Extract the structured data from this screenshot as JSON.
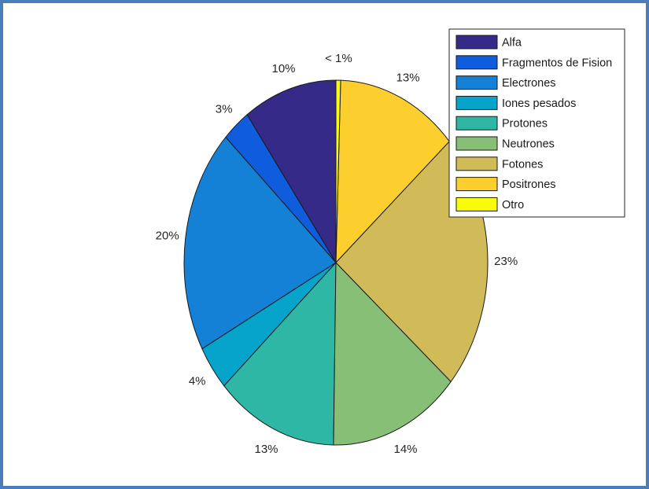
{
  "chart_data": {
    "type": "pie",
    "legend_position": "top-right",
    "slices": [
      {
        "name": "Alfa",
        "value": 10,
        "label": "10%",
        "color": "#352a87"
      },
      {
        "name": "Fragmentos de Fision",
        "value": 3,
        "label": "3%",
        "color": "#0f5cdd"
      },
      {
        "name": "Electrones",
        "value": 20,
        "label": "20%",
        "color": "#1481d6"
      },
      {
        "name": "Iones pesados",
        "value": 4,
        "label": "4%",
        "color": "#06a4ca"
      },
      {
        "name": "Protones",
        "value": 13,
        "label": "13%",
        "color": "#2eb7a4"
      },
      {
        "name": "Neutrones",
        "value": 14,
        "label": "14%",
        "color": "#87bf77"
      },
      {
        "name": "Fotones",
        "value": 23,
        "label": "23%",
        "color": "#d1bb59"
      },
      {
        "name": "Positrones",
        "value": 13,
        "label": "13%",
        "color": "#fcce2e"
      },
      {
        "name": "Otro",
        "value": 0.5,
        "label": "< 1%",
        "color": "#f9fb0e"
      }
    ]
  },
  "colors": {
    "frame_border": "#4a7ebb",
    "slice_edge": "#1a1a1a"
  }
}
